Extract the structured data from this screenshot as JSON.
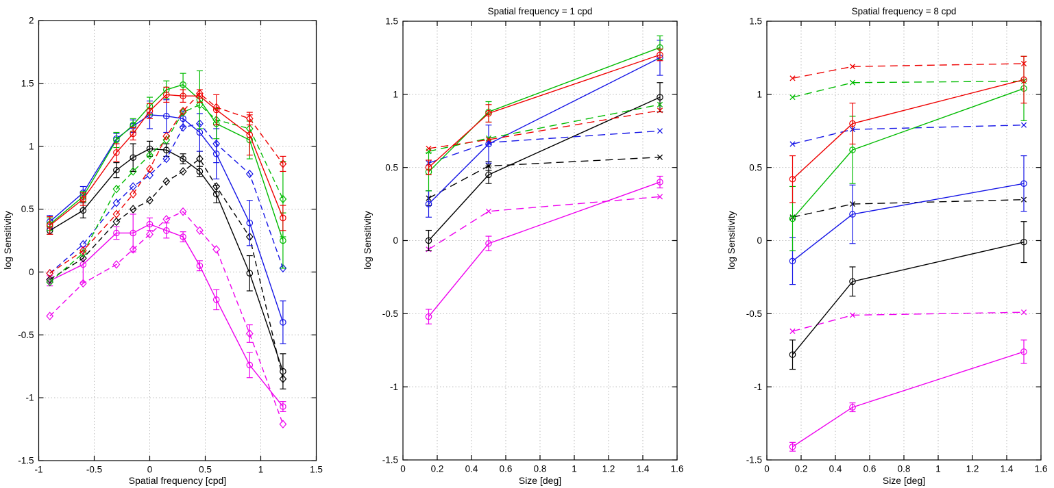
{
  "palette": {
    "green": "#00bb00",
    "red": "#ee0000",
    "blue": "#1414e6",
    "black": "#000000",
    "magenta": "#ee00ee",
    "grid": "#b8b8b8",
    "frame": "#000000"
  },
  "chart_data": [
    {
      "type": "line",
      "title": "",
      "xlabel": "Spatial frequency [cpd]",
      "ylabel": "log Sensitivity",
      "xlim": [
        -1,
        1.5
      ],
      "ylim": [
        -1.5,
        2
      ],
      "xticks": [
        -1,
        -0.5,
        0,
        0.5,
        1,
        1.5
      ],
      "yticks": [
        -1.5,
        -1,
        -0.5,
        0,
        0.5,
        1,
        1.5,
        2
      ],
      "grid": true,
      "legend": "none",
      "x": [
        -0.9,
        -0.6,
        -0.3,
        -0.15,
        0,
        0.15,
        0.3,
        0.45,
        0.6,
        0.9,
        1.2
      ],
      "series": [
        {
          "name": "magenta-dashed",
          "color": "magenta",
          "line": "dashed",
          "marker": "diamond",
          "values": [
            -0.35,
            -0.09,
            0.06,
            0.18,
            0.3,
            0.42,
            0.48,
            0.33,
            0.18,
            -0.49,
            -1.21
          ],
          "err": [
            0,
            0,
            0,
            0,
            0,
            0,
            0,
            0,
            0,
            0.07,
            0
          ]
        },
        {
          "name": "magenta-solid",
          "color": "magenta",
          "line": "solid",
          "marker": "circle",
          "values": [
            -0.07,
            0.06,
            0.31,
            0.31,
            0.38,
            0.33,
            0.28,
            0.05,
            -0.22,
            -0.74,
            -1.07
          ],
          "err": [
            0.04,
            0.14,
            0.05,
            0.15,
            0.05,
            0.06,
            0.04,
            0.04,
            0.08,
            0.1,
            0.04
          ]
        },
        {
          "name": "black-dashed",
          "color": "black",
          "line": "dashed",
          "marker": "diamond",
          "values": [
            -0.06,
            0.11,
            0.4,
            0.5,
            0.57,
            0.72,
            0.8,
            0.9,
            0.68,
            0.28,
            -0.85
          ],
          "err": [
            0,
            0,
            0,
            0,
            0,
            0,
            0,
            0.06,
            0,
            0,
            0
          ]
        },
        {
          "name": "black-solid",
          "color": "black",
          "line": "solid",
          "marker": "circle",
          "values": [
            0.33,
            0.49,
            0.81,
            0.91,
            0.98,
            0.97,
            0.9,
            0.8,
            0.62,
            -0.01,
            -0.79
          ],
          "err": [
            0.03,
            0.06,
            0.06,
            0.11,
            0.06,
            0.05,
            0.04,
            0.04,
            0.07,
            0.14,
            0.14
          ]
        },
        {
          "name": "blue-dashed",
          "color": "blue",
          "line": "dashed",
          "marker": "diamond",
          "values": [
            -0.01,
            0.22,
            0.55,
            0.68,
            0.77,
            0.9,
            1.15,
            1.18,
            1.02,
            0.78,
            0.03
          ],
          "err": [
            0,
            0,
            0,
            0,
            0,
            0,
            0,
            0,
            0.15,
            0,
            0
          ]
        },
        {
          "name": "blue-solid",
          "color": "blue",
          "line": "solid",
          "marker": "circle",
          "values": [
            0.4,
            0.63,
            1.06,
            1.16,
            1.25,
            1.24,
            1.22,
            1.11,
            0.94,
            0.39,
            -0.4
          ],
          "err": [
            0.05,
            0.05,
            0.04,
            0.05,
            0.11,
            0.13,
            0.06,
            0.15,
            0.2,
            0.18,
            0.17
          ]
        },
        {
          "name": "green-dashed",
          "color": "green",
          "line": "dashed",
          "marker": "diamond",
          "values": [
            -0.08,
            0.15,
            0.66,
            0.8,
            0.93,
            1.05,
            1.27,
            1.33,
            1.21,
            1.14,
            0.58
          ],
          "err": [
            0,
            0,
            0,
            0,
            0,
            0,
            0,
            0,
            0,
            0,
            0.3
          ]
        },
        {
          "name": "green-solid",
          "color": "green",
          "line": "solid",
          "marker": "circle",
          "values": [
            0.38,
            0.6,
            1.05,
            1.17,
            1.32,
            1.45,
            1.49,
            1.37,
            1.18,
            1.05,
            0.25
          ],
          "err": [
            0.05,
            0.04,
            0.06,
            0.05,
            0.07,
            0.07,
            0.09,
            0.23,
            0.12,
            0.15,
            0.22
          ]
        },
        {
          "name": "red-dashed",
          "color": "red",
          "line": "dashed",
          "marker": "diamond",
          "values": [
            -0.01,
            0.17,
            0.46,
            0.62,
            0.82,
            1.08,
            1.28,
            1.42,
            1.31,
            1.22,
            0.86
          ],
          "err": [
            0,
            0,
            0,
            0,
            0,
            0,
            0,
            0,
            0,
            0.05,
            0.06
          ]
        },
        {
          "name": "red-solid",
          "color": "red",
          "line": "solid",
          "marker": "circle",
          "values": [
            0.37,
            0.58,
            0.95,
            1.1,
            1.28,
            1.41,
            1.4,
            1.4,
            1.29,
            1.09,
            0.43
          ],
          "err": [
            0.07,
            0.05,
            0.07,
            0.05,
            0.06,
            0.06,
            0.05,
            0.05,
            0.12,
            0.16,
            0.1
          ]
        }
      ]
    },
    {
      "type": "line",
      "title": "Spatial frequency = 1 cpd",
      "xlabel": "Size [deg]",
      "ylabel": "log Sensitivity",
      "xlim": [
        0,
        1.6
      ],
      "ylim": [
        -1.5,
        1.5
      ],
      "xticks": [
        0,
        0.2,
        0.4,
        0.6,
        0.8,
        1,
        1.2,
        1.4,
        1.6
      ],
      "yticks": [
        -1.5,
        -1,
        -0.5,
        0,
        0.5,
        1,
        1.5
      ],
      "grid": true,
      "legend": "none",
      "x": [
        0.15,
        0.5,
        1.5
      ],
      "series": [
        {
          "name": "magenta-dashed",
          "color": "magenta",
          "line": "dashed",
          "marker": "x",
          "values": [
            -0.06,
            0.2,
            0.3
          ],
          "err": [
            0,
            0,
            0
          ]
        },
        {
          "name": "magenta-solid",
          "color": "magenta",
          "line": "solid",
          "marker": "circle",
          "values": [
            -0.52,
            -0.02,
            0.4
          ],
          "err": [
            0.05,
            0.05,
            0.04
          ]
        },
        {
          "name": "black-dashed",
          "color": "black",
          "line": "dashed",
          "marker": "x",
          "values": [
            0.29,
            0.51,
            0.57
          ],
          "err": [
            0.05,
            0.03,
            0
          ]
        },
        {
          "name": "black-solid",
          "color": "black",
          "line": "solid",
          "marker": "circle",
          "values": [
            0.0,
            0.45,
            0.98
          ],
          "err": [
            0.07,
            0.06,
            0.1
          ]
        },
        {
          "name": "blue-dashed",
          "color": "blue",
          "line": "dashed",
          "marker": "x",
          "values": [
            0.53,
            0.67,
            0.75
          ],
          "err": [
            0,
            0,
            0
          ]
        },
        {
          "name": "blue-solid",
          "color": "blue",
          "line": "solid",
          "marker": "circle",
          "values": [
            0.25,
            0.66,
            1.25
          ],
          "err": [
            0.09,
            0.13,
            0.12
          ]
        },
        {
          "name": "green-dashed",
          "color": "green",
          "line": "dashed",
          "marker": "x",
          "values": [
            0.61,
            0.7,
            0.93
          ],
          "err": [
            0,
            0,
            0
          ]
        },
        {
          "name": "green-solid",
          "color": "green",
          "line": "solid",
          "marker": "circle",
          "values": [
            0.47,
            0.88,
            1.32
          ],
          "err": [
            0.13,
            0.07,
            0.08
          ]
        },
        {
          "name": "red-dashed",
          "color": "red",
          "line": "dashed",
          "marker": "x",
          "values": [
            0.63,
            0.69,
            0.89
          ],
          "err": [
            0,
            0,
            0
          ]
        },
        {
          "name": "red-solid",
          "color": "red",
          "line": "solid",
          "marker": "circle",
          "values": [
            0.5,
            0.87,
            1.27
          ],
          "err": [
            0.05,
            0.06,
            0.04
          ]
        }
      ]
    },
    {
      "type": "line",
      "title": "Spatial frequency = 8 cpd",
      "xlabel": "Size [deg]",
      "ylabel": "log Sensitivity",
      "xlim": [
        0,
        1.6
      ],
      "ylim": [
        -1.5,
        1.5
      ],
      "xticks": [
        0,
        0.2,
        0.4,
        0.6,
        0.8,
        1,
        1.2,
        1.4,
        1.6
      ],
      "yticks": [
        -1.5,
        -1,
        -0.5,
        0,
        0.5,
        1,
        1.5
      ],
      "grid": true,
      "legend": "none",
      "x": [
        0.15,
        0.5,
        1.5
      ],
      "series": [
        {
          "name": "magenta-dashed",
          "color": "magenta",
          "line": "dashed",
          "marker": "x",
          "values": [
            -0.62,
            -0.51,
            -0.49
          ],
          "err": [
            0,
            0,
            0
          ]
        },
        {
          "name": "magenta-solid",
          "color": "magenta",
          "line": "solid",
          "marker": "circle",
          "values": [
            -1.41,
            -1.14,
            -0.76
          ],
          "err": [
            0.03,
            0.03,
            0.08
          ]
        },
        {
          "name": "black-dashed",
          "color": "black",
          "line": "dashed",
          "marker": "x",
          "values": [
            0.16,
            0.25,
            0.28
          ],
          "err": [
            0,
            0,
            0
          ]
        },
        {
          "name": "black-solid",
          "color": "black",
          "line": "solid",
          "marker": "circle",
          "values": [
            -0.78,
            -0.28,
            -0.01
          ],
          "err": [
            0.1,
            0.1,
            0.14
          ]
        },
        {
          "name": "blue-dashed",
          "color": "blue",
          "line": "dashed",
          "marker": "x",
          "values": [
            0.66,
            0.76,
            0.79
          ],
          "err": [
            0,
            0,
            0
          ]
        },
        {
          "name": "blue-solid",
          "color": "blue",
          "line": "solid",
          "marker": "circle",
          "values": [
            -0.14,
            0.18,
            0.39
          ],
          "err": [
            0.16,
            0.2,
            0.19
          ]
        },
        {
          "name": "green-dashed",
          "color": "green",
          "line": "dashed",
          "marker": "x",
          "values": [
            0.98,
            1.08,
            1.09
          ],
          "err": [
            0,
            0,
            0
          ]
        },
        {
          "name": "green-solid",
          "color": "green",
          "line": "solid",
          "marker": "circle",
          "values": [
            0.15,
            0.62,
            1.04
          ],
          "err": [
            0.22,
            0.23,
            0.22
          ]
        },
        {
          "name": "red-dashed",
          "color": "red",
          "line": "dashed",
          "marker": "x",
          "values": [
            1.11,
            1.19,
            1.21
          ],
          "err": [
            0,
            0,
            0
          ]
        },
        {
          "name": "red-solid",
          "color": "red",
          "line": "solid",
          "marker": "circle",
          "values": [
            0.42,
            0.8,
            1.1
          ],
          "err": [
            0.16,
            0.14,
            0.16
          ]
        }
      ]
    }
  ]
}
